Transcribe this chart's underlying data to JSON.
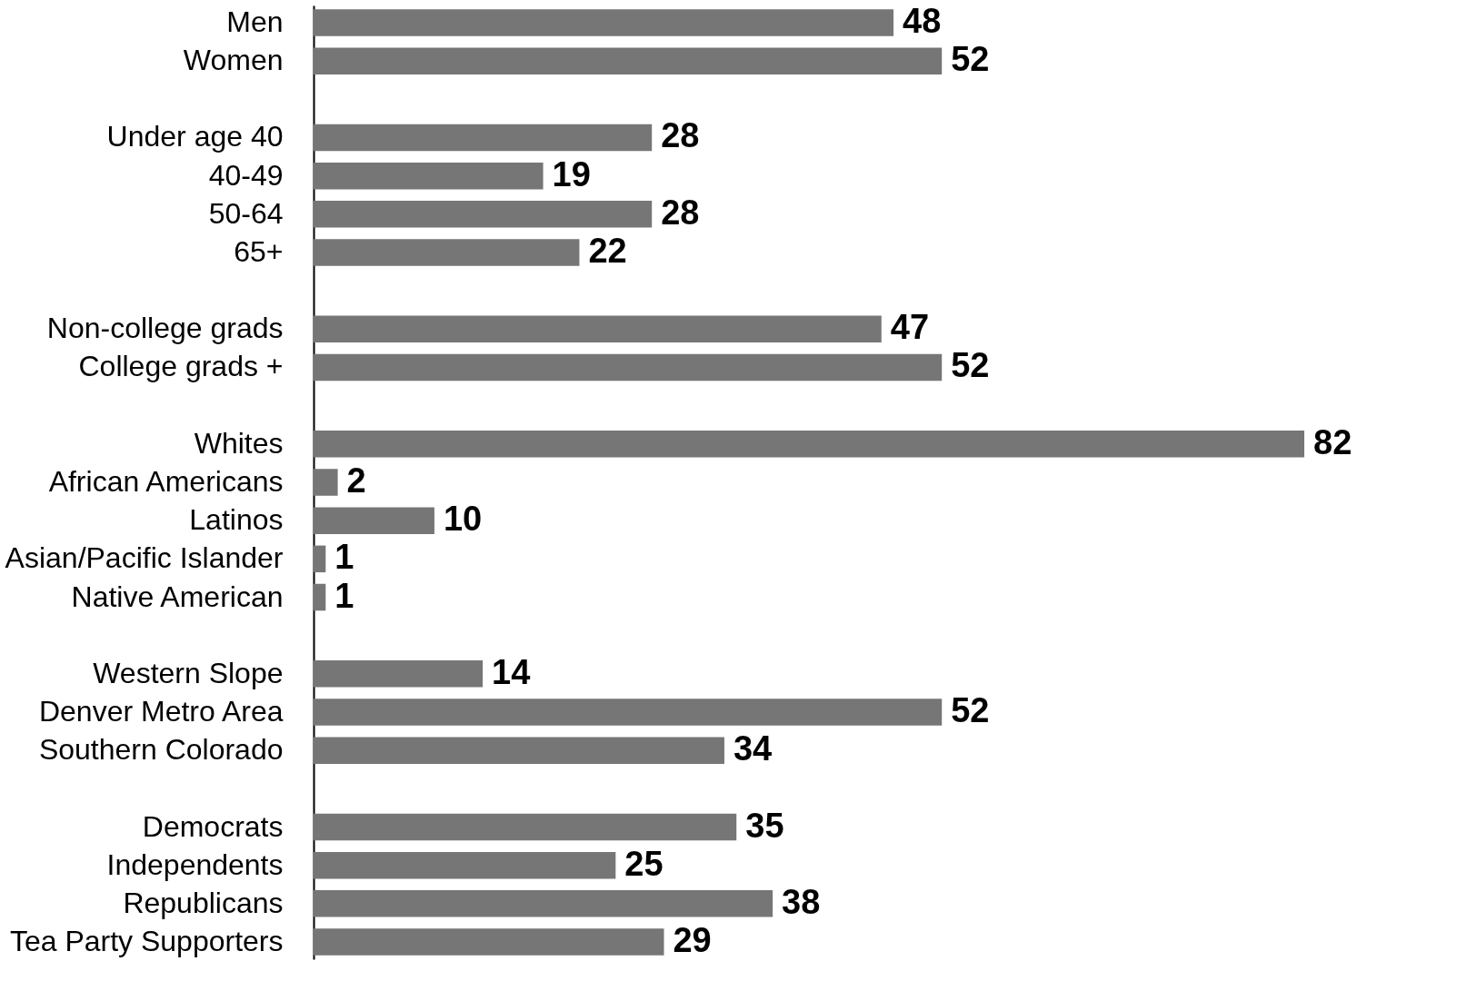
{
  "chart_data": {
    "type": "bar",
    "orientation": "horizontal",
    "data_labels": true,
    "color": "#767676",
    "categories": [
      "Men",
      "Women",
      null,
      "Under age 40",
      "40-49",
      "50-64",
      "65+",
      null,
      "Non-college grads",
      "College grads +",
      null,
      "Whites",
      "African Americans",
      "Latinos",
      "Asian/Pacific Islander",
      "Native American",
      null,
      "Western Slope",
      "Denver Metro Area",
      "Southern Colorado",
      null,
      "Democrats",
      "Independents",
      "Republicans",
      "Tea Party Supporters"
    ],
    "values": [
      48,
      52,
      null,
      28,
      19,
      28,
      22,
      null,
      47,
      52,
      null,
      82,
      2,
      10,
      1,
      1,
      null,
      14,
      52,
      34,
      null,
      35,
      25,
      38,
      29
    ]
  }
}
